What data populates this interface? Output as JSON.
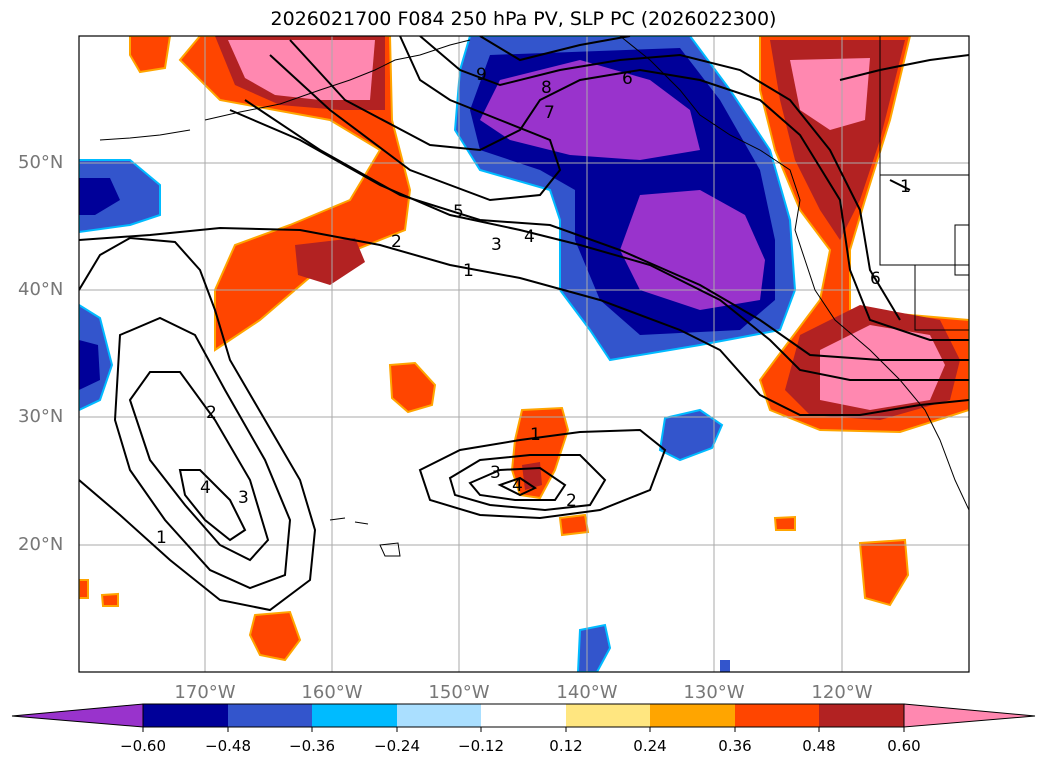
{
  "title": "2026021700 F084 250 hPa PV, SLP PC (2026022300)",
  "lat_labels": [
    "50°N",
    "40°N",
    "30°N",
    "20°N"
  ],
  "lon_labels": [
    "170°W",
    "160°W",
    "150°W",
    "140°W",
    "130°W",
    "120°W"
  ],
  "colorbar": {
    "ticks": [
      "−0.60",
      "−0.48",
      "−0.36",
      "−0.24",
      "−0.12",
      "0.12",
      "0.24",
      "0.36",
      "0.48",
      "0.60"
    ],
    "colors": [
      "#9933cc",
      "#000099",
      "#3355cc",
      "#00bbff",
      "#aadfff",
      "#ffffff",
      "#ffe680",
      "#ffa500",
      "#ff4500",
      "#b22222",
      "#ff88b0"
    ]
  },
  "contour_labels": [
    "9",
    "8",
    "7",
    "6",
    "5",
    "4",
    "3",
    "2",
    "1",
    "1",
    "6",
    "2",
    "3",
    "4",
    "1",
    "2",
    "3",
    "4",
    "1"
  ]
}
